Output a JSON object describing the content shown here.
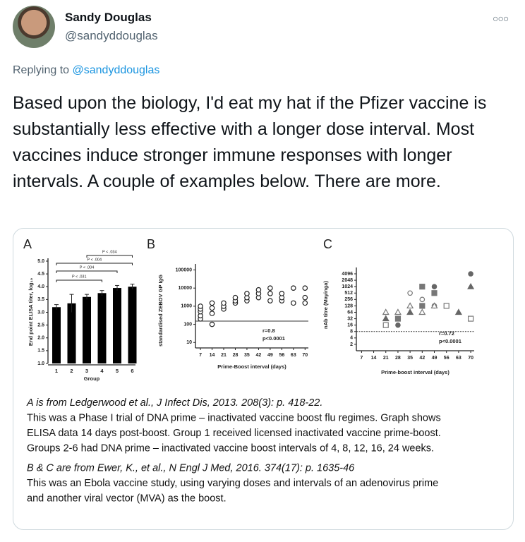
{
  "tweet": {
    "name": "Sandy Douglas",
    "handle": "@sandyddouglas",
    "replying_prefix": "Replying to",
    "replying_handle": "@sandyddouglas",
    "text": "Based upon the biology, I'd eat my hat if the Pfizer vaccine is substantially less effective with a longer dose interval. Most vaccines induce stronger immune responses with longer intervals. A couple of examples below. There are more."
  },
  "chart_data": [
    {
      "type": "bar",
      "panel": "A",
      "xlabel": "Group",
      "ylabel": "End point ELISA titer, log₁₀",
      "categories": [
        "1",
        "2",
        "3",
        "4",
        "5",
        "6"
      ],
      "values": [
        3.2,
        3.35,
        3.6,
        3.75,
        3.95,
        4.0
      ],
      "errors": [
        0.1,
        0.35,
        0.1,
        0.1,
        0.1,
        0.1
      ],
      "color": "#000000",
      "ylim": [
        1.0,
        5.0
      ],
      "yticks": [
        {
          "value": 1.0,
          "label": "1.0"
        },
        {
          "value": 1.5,
          "label": "1.5"
        },
        {
          "value": 2.0,
          "label": "2.0"
        },
        {
          "value": 2.5,
          "label": "2.5"
        },
        {
          "value": 3.0,
          "label": "3.0"
        },
        {
          "value": 3.5,
          "label": "3.5"
        },
        {
          "value": 4.0,
          "label": "4.0"
        },
        {
          "value": 4.5,
          "label": "4.5"
        },
        {
          "value": 5.0,
          "label": "5.0"
        }
      ],
      "annotations": [
        "P < .034",
        "P < .004",
        "P < .004",
        "P < .031"
      ]
    },
    {
      "type": "scatter",
      "panel": "B",
      "xlabel": "Prime-Boost interval (days)",
      "ylabel": "standardised ZEBOV GP IgG",
      "yscale": "log",
      "xlim": [
        4,
        72
      ],
      "xticks": [
        7,
        14,
        21,
        28,
        35,
        42,
        49,
        56,
        63,
        70
      ],
      "ylim": [
        5,
        150000
      ],
      "yticks": [
        10,
        100,
        1000,
        10000,
        100000
      ],
      "threshold": 150,
      "x": [
        7,
        7,
        7,
        7,
        7,
        14,
        14,
        14,
        14,
        21,
        21,
        21,
        28,
        28,
        28,
        35,
        35,
        35,
        42,
        42,
        42,
        49,
        49,
        49,
        56,
        56,
        56,
        63,
        63,
        70,
        70,
        70
      ],
      "y": [
        200,
        300,
        500,
        700,
        1000,
        100,
        400,
        800,
        1500,
        700,
        1000,
        1500,
        1500,
        2000,
        3000,
        2000,
        3000,
        5000,
        3000,
        5000,
        8000,
        2000,
        5000,
        10000,
        2000,
        3000,
        5000,
        1500,
        10000,
        1500,
        3000,
        10000
      ],
      "annotations": [
        "r=0.8",
        "p<0.0001"
      ]
    },
    {
      "type": "scatter",
      "panel": "C",
      "xlabel": "Prime-boost interval (days)",
      "ylabel": "nAb titre (Mayinga)",
      "yscale": "log",
      "xlim": [
        4,
        72
      ],
      "xticks": [
        7,
        14,
        21,
        28,
        35,
        42,
        49,
        56,
        63,
        70
      ],
      "ylim": [
        1,
        6000
      ],
      "yticks": [
        2,
        4,
        8,
        16,
        32,
        64,
        128,
        256,
        512,
        1024,
        2048,
        4096
      ],
      "threshold": 8,
      "series": [
        {
          "marker": "circle",
          "filled": false,
          "color": "#777777",
          "x": [
            35,
            42,
            49,
            28
          ],
          "y": [
            512,
            256,
            128,
            32
          ]
        },
        {
          "marker": "circle",
          "filled": true,
          "color": "#666666",
          "x": [
            28,
            70,
            49
          ],
          "y": [
            16,
            4096,
            1024
          ]
        },
        {
          "marker": "square",
          "filled": false,
          "color": "#777777",
          "x": [
            21,
            56,
            70
          ],
          "y": [
            16,
            128,
            32
          ]
        },
        {
          "marker": "square",
          "filled": true,
          "color": "#777777",
          "x": [
            28,
            42,
            49,
            42
          ],
          "y": [
            32,
            1024,
            512,
            128
          ]
        },
        {
          "marker": "triangle",
          "filled": false,
          "color": "#777777",
          "x": [
            21,
            28,
            35,
            42,
            49
          ],
          "y": [
            64,
            64,
            128,
            64,
            128
          ]
        },
        {
          "marker": "triangle",
          "filled": true,
          "color": "#666666",
          "x": [
            21,
            70,
            63,
            35
          ],
          "y": [
            32,
            1024,
            64,
            64
          ]
        }
      ],
      "annotations": [
        "r=0.72",
        "p<0.0001"
      ]
    }
  ],
  "captions": [
    {
      "citation": "A is from Ledgerwood et al., J Infect Dis, 2013. 208(3): p. 418-22.",
      "lines": [
        "This was a Phase I trial of DNA prime – inactivated vaccine boost flu regimes. Graph shows",
        "ELISA data 14 days post-boost. Group 1 received licensed inactivated vaccine prime-boost.",
        "Groups 2-6 had DNA prime – inactivated vaccine boost intervals of 4, 8, 12, 16, 24 weeks."
      ]
    },
    {
      "citation": "B & C are from Ewer, K., et al., N Engl J Med, 2016. 374(17): p. 1635-46",
      "lines": [
        "This was an Ebola vaccine study, using varying doses and intervals of an adenovirus prime",
        "and another viral vector (MVA) as the boost."
      ]
    }
  ]
}
